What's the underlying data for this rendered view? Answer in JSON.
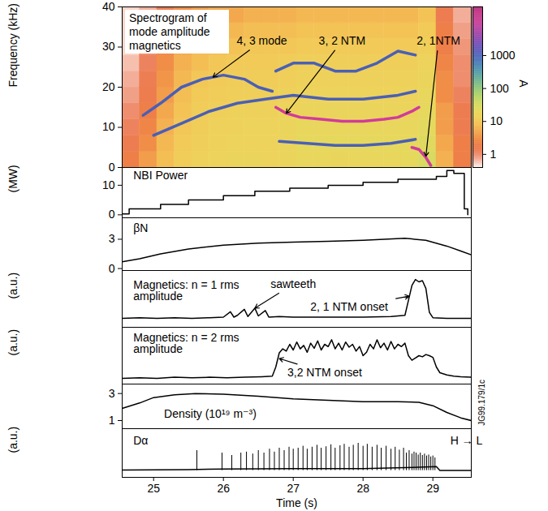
{
  "chart_data": [
    {
      "type": "heatmap",
      "title": "Spectrogram of mode amplitude magnetics",
      "ylabel": "Frequency (kHz)",
      "xlim": [
        24.55,
        29.55
      ],
      "ylim": [
        0,
        40
      ],
      "yticks": [
        0,
        10,
        20,
        30,
        40
      ],
      "tick_labels": "y",
      "cells": {
        "t_edges": [
          24.55,
          24.8,
          25.05,
          25.3,
          25.55,
          25.8,
          26.05,
          26.3,
          26.55,
          26.8,
          27.05,
          27.3,
          27.55,
          27.8,
          28.05,
          28.3,
          28.55,
          28.8,
          29.05,
          29.3,
          29.55
        ],
        "f_edges": [
          0,
          4,
          8,
          12,
          16,
          20,
          24,
          28,
          32,
          36,
          40
        ],
        "amplitude": [
          [
            2,
            4,
            8,
            12,
            14,
            15,
            16,
            16,
            15,
            16,
            18,
            18,
            17,
            18,
            18,
            18,
            20,
            30,
            6,
            2
          ],
          [
            1.5,
            3,
            7,
            11,
            13,
            14,
            15,
            15,
            15,
            16,
            20,
            20,
            20,
            20,
            20,
            20,
            20,
            25,
            5,
            2
          ],
          [
            1.2,
            2.5,
            6,
            10,
            12,
            14,
            14,
            15,
            15,
            16,
            18,
            18,
            18,
            18,
            18,
            18,
            18,
            22,
            4,
            1.5
          ],
          [
            1,
            2,
            5,
            9,
            12,
            13,
            14,
            14,
            14,
            15,
            16,
            16,
            16,
            16,
            16,
            16,
            16,
            20,
            4,
            1.5
          ],
          [
            0.8,
            1.6,
            4,
            8,
            11,
            12,
            13,
            13,
            13,
            14,
            15,
            15,
            15,
            15,
            15,
            15,
            15,
            18,
            3,
            1.2
          ],
          [
            0.7,
            1.4,
            3.5,
            7,
            10,
            11,
            12,
            12,
            12,
            13,
            14,
            14,
            14,
            14,
            14,
            14,
            14,
            16,
            3,
            1
          ],
          [
            0.6,
            1.2,
            3,
            6,
            8,
            10,
            11,
            11,
            11,
            12,
            13,
            13,
            13,
            13,
            13,
            13,
            13,
            15,
            2.5,
            1
          ],
          [
            0.5,
            1,
            2.5,
            5,
            7,
            8,
            9,
            10,
            10,
            10,
            11,
            11,
            11,
            11,
            11,
            11,
            11,
            13,
            2,
            0.9
          ],
          [
            0.5,
            0.8,
            2,
            4,
            5,
            6,
            7,
            8,
            8,
            8,
            9,
            9,
            9,
            9,
            9,
            9,
            9,
            11,
            2,
            0.8
          ],
          [
            0.5,
            0.7,
            1.5,
            3,
            4,
            5,
            5,
            6,
            6,
            6,
            7,
            7,
            7,
            7,
            7,
            7,
            7,
            9,
            1.5,
            0.7
          ]
        ]
      },
      "colorbar": {
        "label": "A",
        "range": [
          0.4,
          30000
        ],
        "ticks": [
          1,
          10,
          100,
          1000
        ],
        "log": true,
        "colors": [
          "#fdf3ee",
          "#e8603c",
          "#f39a4a",
          "#f6d35a",
          "#d8e060",
          "#8cc87a",
          "#4f9fb5",
          "#4c64c0",
          "#8a4cb4",
          "#d8489c",
          "#b8357f"
        ]
      },
      "series": [
        {
          "type": "line",
          "color": "#4a5fb5",
          "x": [
            24.85,
            25.1,
            25.4,
            25.7,
            26.0,
            26.3,
            26.5,
            26.7
          ],
          "values": [
            13,
            16,
            20,
            22,
            23,
            22,
            20,
            19
          ]
        },
        {
          "type": "line",
          "color": "#4a5fb5",
          "x": [
            26.75,
            27.0,
            27.3,
            27.6,
            27.9,
            28.2,
            28.5,
            28.75
          ],
          "values": [
            24,
            26,
            26,
            24,
            24,
            26,
            29,
            28
          ]
        },
        {
          "type": "line",
          "color": "#4a5fb5",
          "x": [
            25.0,
            25.4,
            25.8,
            26.2,
            26.6,
            27.0,
            27.5,
            28.0,
            28.5,
            28.75
          ],
          "values": [
            8,
            11,
            14,
            16,
            17,
            18,
            17,
            17,
            18,
            19
          ]
        },
        {
          "type": "line",
          "color": "#4a5fb5",
          "x": [
            26.8,
            27.2,
            27.6,
            28.0,
            28.4,
            28.75
          ],
          "values": [
            6.5,
            6,
            5.5,
            5.5,
            6,
            7
          ]
        },
        {
          "type": "line",
          "color": "#d03c9a",
          "x": [
            26.75,
            26.9,
            27.1,
            27.4,
            27.7,
            28.0,
            28.3,
            28.5,
            28.7,
            28.8
          ],
          "values": [
            15,
            13.5,
            12.5,
            12,
            11.5,
            11.5,
            12,
            12.5,
            14,
            15
          ]
        },
        {
          "type": "line",
          "color": "#d03c9a",
          "x": [
            28.7,
            28.8,
            28.9,
            28.97
          ],
          "values": [
            5,
            4.5,
            2.5,
            0.5
          ]
        }
      ],
      "annotations": [
        {
          "text": "4, 3 mode",
          "x": 26.55,
          "y": 31.5,
          "arrow": [
            25.85,
            22.5
          ]
        },
        {
          "text": "3, 2 NTM",
          "x": 27.7,
          "y": 31.5,
          "arrow": [
            26.9,
            13.5
          ]
        },
        {
          "text": "2, 1NTM",
          "x": 29.08,
          "y": 31.5,
          "arrow": [
            28.9,
            2.8
          ]
        }
      ]
    },
    {
      "type": "line",
      "line_style": "step",
      "color": "#000000",
      "ylabel": "(MW)",
      "xlim": [
        24.55,
        29.55
      ],
      "ylim": [
        -1,
        16
      ],
      "yticks": [
        0,
        10
      ],
      "tick_labels": "y",
      "x": [
        24.55,
        24.65,
        25.1,
        25.5,
        26.0,
        26.45,
        26.95,
        27.5,
        28.0,
        28.5,
        29.05,
        29.2,
        29.3,
        29.45,
        29.5
      ],
      "values": [
        0.3,
        2,
        3.5,
        5,
        6.5,
        8,
        9,
        10,
        11,
        12,
        13,
        15,
        14,
        2,
        0
      ],
      "annotations": [
        {
          "text": "NBI Power",
          "x": 24.71,
          "y": 13.2
        }
      ]
    },
    {
      "type": "line",
      "color": "#000000",
      "xlim": [
        24.55,
        29.55
      ],
      "ylim": [
        -0.2,
        5.2
      ],
      "yticks": [
        0,
        3
      ],
      "tick_labels": "y",
      "x": [
        24.55,
        24.8,
        25.1,
        25.5,
        26.0,
        26.5,
        27.0,
        27.5,
        28.0,
        28.6,
        28.9,
        29.2,
        29.4,
        29.55
      ],
      "values": [
        0.7,
        1.0,
        1.5,
        2.0,
        2.4,
        2.6,
        2.7,
        2.8,
        2.9,
        3.1,
        2.9,
        2.3,
        1.8,
        1.4
      ],
      "annotations": [
        {
          "text": "βN",
          "x": 24.71,
          "y": 4.1
        }
      ]
    },
    {
      "type": "line",
      "color": "#000000",
      "ylabel": "(a.u.)",
      "xlim": [
        24.55,
        29.55
      ],
      "ylim": [
        0.1,
        1.05
      ],
      "tick_labels": false,
      "x": [
        24.55,
        24.8,
        25.05,
        25.3,
        25.55,
        25.8,
        26.0,
        26.1,
        26.15,
        26.2,
        26.3,
        26.35,
        26.45,
        26.5,
        26.6,
        26.65,
        26.8,
        27.0,
        27.5,
        28.0,
        28.4,
        28.6,
        28.65,
        28.7,
        28.75,
        28.8,
        28.85,
        28.9,
        28.95,
        29.0,
        29.2,
        29.55
      ],
      "values": [
        0.25,
        0.26,
        0.25,
        0.26,
        0.25,
        0.26,
        0.27,
        0.36,
        0.27,
        0.3,
        0.4,
        0.28,
        0.42,
        0.29,
        0.38,
        0.27,
        0.28,
        0.27,
        0.27,
        0.27,
        0.28,
        0.3,
        0.55,
        0.8,
        0.9,
        0.86,
        0.88,
        0.75,
        0.35,
        0.26,
        0.25,
        0.25
      ],
      "annotations": [
        {
          "text": "Magnetics: n = 1 rms amplitude",
          "x": 24.71,
          "y": 0.71
        },
        {
          "text": "sawteeth",
          "x": 27.0,
          "y": 0.82,
          "arrow": [
            26.45,
            0.42
          ]
        },
        {
          "text": "2, 1 NTM onset",
          "x": 27.8,
          "y": 0.44,
          "arrow": [
            28.66,
            0.62
          ]
        }
      ]
    },
    {
      "type": "line",
      "color": "#000000",
      "ylabel": "(a.u.)",
      "xlim": [
        24.55,
        29.55
      ],
      "ylim": [
        0,
        1
      ],
      "tick_labels": false,
      "x": [
        24.55,
        24.8,
        25.05,
        25.3,
        25.55,
        25.8,
        26.05,
        26.3,
        26.55,
        26.7,
        26.75,
        26.8,
        26.85,
        26.9,
        26.95,
        27.0,
        27.05,
        27.1,
        27.15,
        27.2,
        27.25,
        27.3,
        27.35,
        27.4,
        27.45,
        27.5,
        27.55,
        27.6,
        27.65,
        27.7,
        27.75,
        27.8,
        27.85,
        27.9,
        27.95,
        28.0,
        28.05,
        28.1,
        28.15,
        28.2,
        28.25,
        28.3,
        28.35,
        28.4,
        28.45,
        28.5,
        28.55,
        28.6,
        28.65,
        28.7,
        28.75,
        28.8,
        28.85,
        28.9,
        28.95,
        29.0,
        29.05,
        29.1,
        29.2,
        29.3,
        29.4,
        29.55
      ],
      "values": [
        0.1,
        0.11,
        0.1,
        0.12,
        0.11,
        0.12,
        0.11,
        0.12,
        0.13,
        0.14,
        0.3,
        0.55,
        0.62,
        0.58,
        0.7,
        0.6,
        0.74,
        0.62,
        0.68,
        0.56,
        0.72,
        0.63,
        0.76,
        0.6,
        0.7,
        0.66,
        0.78,
        0.62,
        0.72,
        0.6,
        0.74,
        0.65,
        0.7,
        0.58,
        0.66,
        0.5,
        0.56,
        0.7,
        0.62,
        0.78,
        0.64,
        0.72,
        0.6,
        0.75,
        0.62,
        0.7,
        0.66,
        0.72,
        0.5,
        0.42,
        0.46,
        0.5,
        0.48,
        0.52,
        0.5,
        0.47,
        0.3,
        0.2,
        0.16,
        0.14,
        0.13,
        0.12
      ],
      "annotations": [
        {
          "text": "Magnetics: n = 2 rms amplitude",
          "x": 24.71,
          "y": 0.71
        },
        {
          "text": "3,2 NTM onset",
          "x": 27.45,
          "y": 0.2,
          "arrow": [
            26.8,
            0.45
          ]
        }
      ]
    },
    {
      "type": "line",
      "color": "#000000",
      "xlim": [
        24.55,
        29.55
      ],
      "ylim": [
        0.4,
        3.7
      ],
      "yticks": [
        1,
        3
      ],
      "tick_labels": "y",
      "x": [
        24.55,
        24.8,
        25.0,
        25.3,
        25.6,
        26.0,
        26.5,
        27.0,
        27.5,
        28.0,
        28.5,
        28.8,
        29.0,
        29.2,
        29.4,
        29.55
      ],
      "values": [
        1.9,
        2.3,
        2.7,
        2.9,
        3.0,
        2.95,
        2.8,
        2.6,
        2.5,
        2.4,
        2.4,
        2.35,
        2.1,
        1.6,
        1.2,
        1.0
      ],
      "annotations": [
        {
          "text": "Density (10¹⁹ m⁻³)",
          "x": 25.15,
          "y": 1.5
        }
      ]
    },
    {
      "type": "line",
      "ylabel": "(a.u.)",
      "xlabel": "Time (s)",
      "xlim": [
        24.55,
        29.55
      ],
      "xticks": [
        25,
        26,
        27,
        28,
        29
      ],
      "ylim": [
        0,
        1
      ],
      "tick_labels": "x",
      "series": [
        {
          "type": "line",
          "color": "#000000",
          "x": [
            24.55,
            25.5,
            26.0,
            27.0,
            28.0,
            28.6,
            29.05,
            29.1,
            29.55
          ],
          "values": [
            0.15,
            0.16,
            0.17,
            0.18,
            0.18,
            0.2,
            0.22,
            0.14,
            0.14
          ]
        },
        {
          "type": "spikes",
          "color": "#000000",
          "x": [
            25.62,
            25.98,
            26.12,
            26.25,
            26.33,
            26.42,
            26.5,
            26.58,
            26.66,
            26.73,
            26.8,
            26.87,
            26.94,
            27.0,
            27.07,
            27.14,
            27.2,
            27.27,
            27.34,
            27.4,
            27.47,
            27.54,
            27.6,
            27.67,
            27.73,
            27.8,
            27.86,
            27.93,
            28.0,
            28.06,
            28.13,
            28.2,
            28.26,
            28.33,
            28.4,
            28.46,
            28.52,
            28.58,
            28.62,
            28.66,
            28.7,
            28.73,
            28.76,
            28.79,
            28.82,
            28.85,
            28.88,
            28.91,
            28.94,
            28.97,
            29.0,
            29.03
          ],
          "values": [
            0.55,
            0.5,
            0.45,
            0.5,
            0.52,
            0.48,
            0.55,
            0.5,
            0.58,
            0.52,
            0.6,
            0.55,
            0.62,
            0.58,
            0.6,
            0.64,
            0.58,
            0.62,
            0.66,
            0.6,
            0.63,
            0.67,
            0.6,
            0.65,
            0.68,
            0.62,
            0.66,
            0.7,
            0.64,
            0.68,
            0.62,
            0.66,
            0.6,
            0.64,
            0.58,
            0.62,
            0.56,
            0.6,
            0.5,
            0.55,
            0.48,
            0.52,
            0.5,
            0.46,
            0.5,
            0.45,
            0.48,
            0.44,
            0.46,
            0.42,
            0.44,
            0.4
          ]
        }
      ],
      "annotations": [
        {
          "text": "Dα",
          "x": 24.71,
          "y": 0.75
        },
        {
          "text": "H → L",
          "x": 29.25,
          "y": 0.75,
          "arrow": null
        }
      ]
    }
  ],
  "side_text": "JG99.179/1c"
}
